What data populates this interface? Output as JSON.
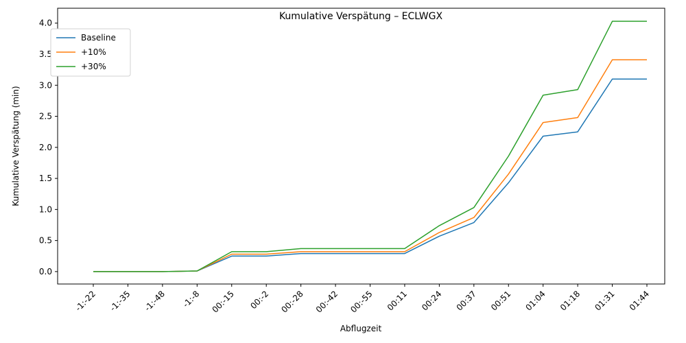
{
  "chart_data": {
    "type": "line",
    "title": "Kumulative Verspätung – ECLWGX",
    "xlabel": "Abflugzeit",
    "ylabel": "Kumulative Verspätung (min)",
    "categories": [
      "-1:-22",
      "-1:-35",
      "-1:-48",
      "-1:-8",
      "00:-15",
      "00:-2",
      "00:-28",
      "00:-42",
      "00:-55",
      "00:11",
      "00:24",
      "00:37",
      "00:51",
      "01:04",
      "01:18",
      "01:31",
      "01:44"
    ],
    "ylim": [
      -0.2,
      4.24
    ],
    "yticks": [
      0.0,
      0.5,
      1.0,
      1.5,
      2.0,
      2.5,
      3.0,
      3.5,
      4.0
    ],
    "ytick_labels": [
      "0.0",
      "0.5",
      "1.0",
      "1.5",
      "2.0",
      "2.5",
      "3.0",
      "3.5",
      "4.0"
    ],
    "grid": false,
    "legend_position": "upper left",
    "series": [
      {
        "name": "Baseline",
        "color": "#1f77b4",
        "values": [
          0.0,
          0.0,
          0.0,
          0.01,
          0.25,
          0.25,
          0.29,
          0.29,
          0.29,
          0.29,
          0.57,
          0.79,
          1.43,
          2.18,
          2.25,
          3.1,
          3.1
        ]
      },
      {
        "name": "+10%",
        "color": "#ff7f0e",
        "values": [
          0.0,
          0.0,
          0.0,
          0.01,
          0.28,
          0.28,
          0.32,
          0.32,
          0.32,
          0.32,
          0.63,
          0.87,
          1.57,
          2.4,
          2.48,
          3.41,
          3.41
        ]
      },
      {
        "name": "+30%",
        "color": "#2ca02c",
        "values": [
          0.0,
          0.0,
          0.0,
          0.01,
          0.32,
          0.32,
          0.37,
          0.37,
          0.37,
          0.37,
          0.74,
          1.03,
          1.86,
          2.84,
          2.93,
          4.03,
          4.03
        ]
      }
    ]
  }
}
